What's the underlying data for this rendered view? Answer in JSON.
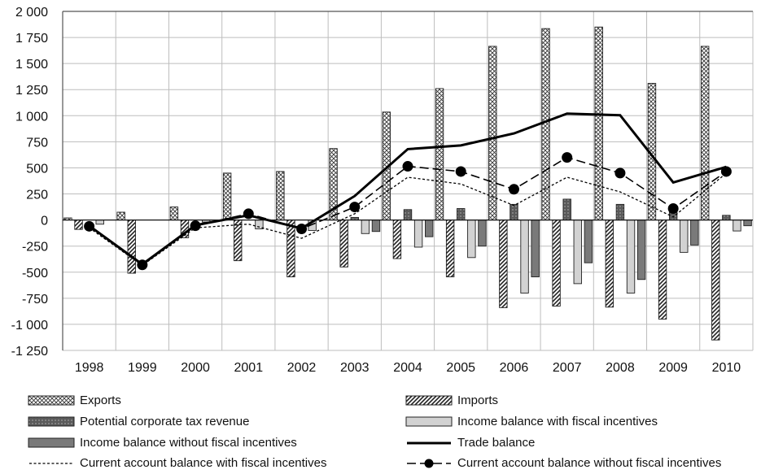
{
  "chart_data": {
    "type": "bar",
    "categories": [
      "1998",
      "1999",
      "2000",
      "2001",
      "2002",
      "2003",
      "2004",
      "2005",
      "2006",
      "2007",
      "2008",
      "2009",
      "2010"
    ],
    "ylim": [
      -1250,
      2000
    ],
    "yticks": [
      2000,
      1750,
      1500,
      1250,
      1000,
      750,
      500,
      250,
      0,
      -250,
      -500,
      -750,
      -1000,
      -1250
    ],
    "ytick_labels": [
      "2 000",
      "1 750",
      "1 500",
      "1 250",
      "1 000",
      "750",
      "500",
      "250",
      "0",
      "-250",
      "-500",
      "-750",
      "-1 000",
      "-1 250"
    ],
    "grid": true,
    "legend_position": "bottom",
    "series": [
      {
        "name": "Exports",
        "kind": "bar",
        "style": "crosshatch",
        "values": [
          20,
          75,
          125,
          450,
          465,
          685,
          1035,
          1260,
          1665,
          1835,
          1850,
          1310,
          1665
        ]
      },
      {
        "name": "Imports",
        "kind": "bar",
        "style": "diagonal",
        "values": [
          -90,
          -510,
          -170,
          -390,
          -545,
          -450,
          -370,
          -545,
          -840,
          -825,
          -835,
          -950,
          -1150
        ]
      },
      {
        "name": "Potential corporate tax revenue",
        "kind": "bar",
        "style": "dark-dotted",
        "values": [
          0,
          0,
          0,
          0,
          0,
          25,
          100,
          110,
          150,
          200,
          150,
          100,
          45
        ]
      },
      {
        "name": "Income balance with fiscal incentives",
        "kind": "bar",
        "style": "light",
        "values": [
          -40,
          0,
          -20,
          -85,
          -100,
          -130,
          -260,
          -360,
          -700,
          -610,
          -700,
          -310,
          -105
        ]
      },
      {
        "name": "Income balance without fiscal incentives",
        "kind": "bar",
        "style": "dark",
        "values": [
          0,
          0,
          0,
          0,
          0,
          -110,
          -160,
          -250,
          -545,
          -410,
          -570,
          -240,
          -55
        ]
      },
      {
        "name": "Trade balance",
        "kind": "line",
        "style": "solid",
        "values": [
          -55,
          -425,
          -50,
          45,
          -80,
          230,
          680,
          715,
          830,
          1020,
          1005,
          360,
          510
        ]
      },
      {
        "name": "Current account balance with fiscal incentives",
        "kind": "line",
        "style": "dotted",
        "values": [
          -75,
          -435,
          -75,
          -40,
          -175,
          60,
          410,
          345,
          140,
          410,
          270,
          30,
          450
        ]
      },
      {
        "name": "Current account balance without fiscal incentives",
        "kind": "line",
        "style": "dash-dot-marker",
        "values": [
          -60,
          -430,
          -55,
          60,
          -85,
          125,
          515,
          465,
          295,
          600,
          450,
          110,
          465
        ]
      }
    ]
  }
}
